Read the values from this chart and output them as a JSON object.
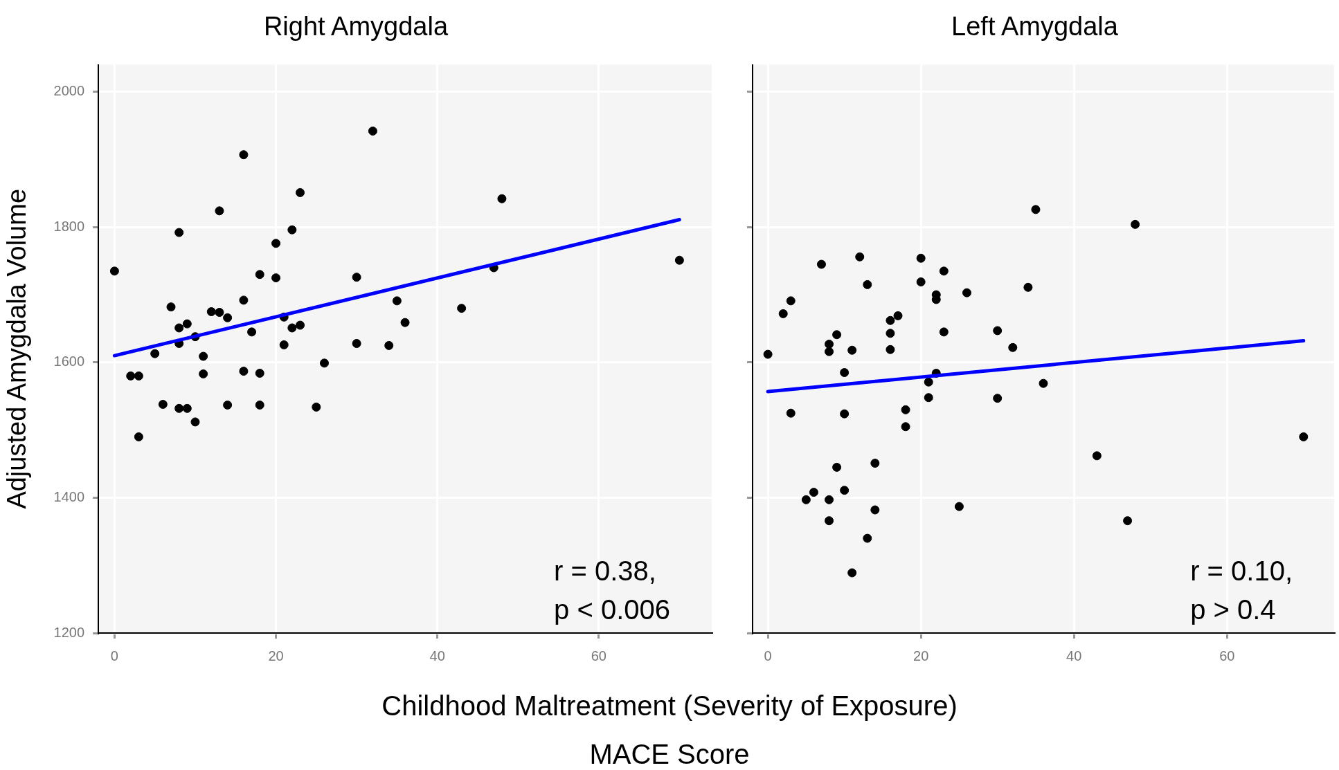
{
  "chart_data": [
    {
      "type": "scatter",
      "title": "Right Amygdala",
      "xlabel": "Childhood Maltreatment (Severity of Exposure)\nMACE Score",
      "ylabel": "Adjusted Amygdala Volume",
      "xlim": [
        -2,
        74
      ],
      "xticks": [
        0,
        20,
        40,
        60
      ],
      "ylim": [
        1200,
        2040
      ],
      "yticks": [
        1200,
        1400,
        1600,
        1800,
        2000
      ],
      "grid": true,
      "annotations": [
        "r = 0.38,\np < 0.006"
      ],
      "series": [
        {
          "color": "#000000",
          "marker": "circle",
          "x": [
            0,
            2,
            3,
            3,
            5,
            6,
            7,
            8,
            8,
            8,
            8,
            9,
            9,
            10,
            10,
            11,
            11,
            12,
            13,
            13,
            14,
            14,
            16,
            16,
            16,
            17,
            18,
            18,
            18,
            20,
            20,
            21,
            21,
            22,
            22,
            23,
            23,
            25,
            26,
            30,
            30,
            32,
            34,
            35,
            36,
            43,
            47,
            48,
            70
          ],
          "values": [
            1735,
            1580,
            1580,
            1490,
            1613,
            1538,
            1682,
            1792,
            1651,
            1628,
            1532,
            1657,
            1532,
            1638,
            1512,
            1609,
            1583,
            1675,
            1824,
            1674,
            1666,
            1537,
            1907,
            1692,
            1587,
            1645,
            1730,
            1584,
            1537,
            1776,
            1725,
            1626,
            1667,
            1796,
            1651,
            1851,
            1655,
            1534,
            1599,
            1726,
            1628,
            1942,
            1625,
            1691,
            1659,
            1680,
            1740,
            1842,
            1751
          ]
        },
        {
          "type": "line",
          "color": "#0000ff",
          "line_style": "solid",
          "marker": "none",
          "x": [
            0,
            70
          ],
          "values": [
            1610,
            1811
          ]
        }
      ]
    },
    {
      "type": "scatter",
      "title": "Left Amygdala",
      "xlim": [
        -2,
        74
      ],
      "xticks": [
        0,
        20,
        40,
        60
      ],
      "ylim": [
        1200,
        2040
      ],
      "yticks": [
        1200,
        1400,
        1600,
        1800,
        2000
      ],
      "grid": true,
      "tick_labels": "x",
      "annotations": [
        "r = 0.10,\np > 0.4"
      ],
      "series": [
        {
          "color": "#000000",
          "marker": "circle",
          "x": [
            0,
            2,
            3,
            3,
            5,
            6,
            7,
            8,
            8,
            8,
            8,
            9,
            9,
            10,
            10,
            10,
            11,
            11,
            12,
            13,
            13,
            14,
            14,
            16,
            16,
            16,
            17,
            18,
            18,
            20,
            20,
            21,
            21,
            22,
            22,
            22,
            23,
            23,
            25,
            26,
            30,
            30,
            32,
            34,
            35,
            36,
            43,
            47,
            48,
            70
          ],
          "values": [
            1612,
            1672,
            1691,
            1525,
            1397,
            1408,
            1745,
            1627,
            1616,
            1397,
            1366,
            1641,
            1445,
            1585,
            1524,
            1411,
            1618,
            1289,
            1756,
            1715,
            1340,
            1451,
            1382,
            1662,
            1643,
            1619,
            1669,
            1530,
            1505,
            1754,
            1719,
            1571,
            1548,
            1700,
            1693,
            1584,
            1735,
            1645,
            1387,
            1703,
            1647,
            1547,
            1622,
            1711,
            1826,
            1569,
            1462,
            1366,
            1804,
            1490
          ]
        },
        {
          "type": "line",
          "color": "#0000ff",
          "line_style": "solid",
          "marker": "none",
          "x": [
            0,
            70
          ],
          "values": [
            1557,
            1632
          ]
        }
      ]
    }
  ]
}
